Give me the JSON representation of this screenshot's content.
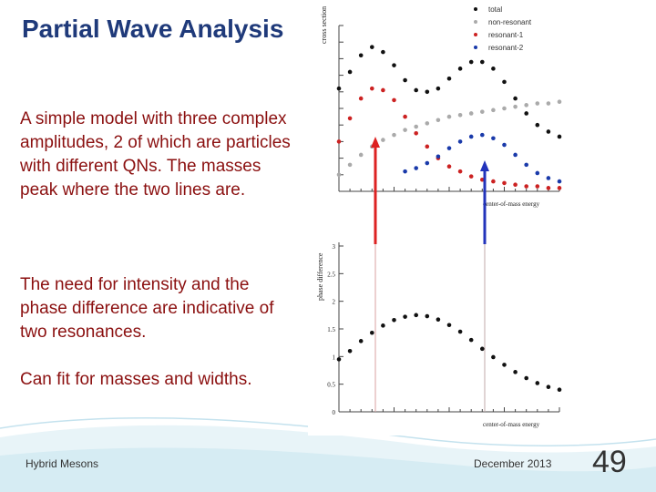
{
  "slide": {
    "title": "Partial Wave Analysis",
    "paragraphs": [
      "A simple model with three complex amplitudes, 2 of which are particles with different QNs. The masses peak where the two lines are.",
      "The need for intensity and the phase difference are indicative of two resonances.",
      "Can fit for masses and widths."
    ],
    "footer_left": "Hybrid Mesons",
    "footer_date": "December 2013",
    "slide_number": "49",
    "colors": {
      "title": "#1f3a7a",
      "body_text": "#8b1010",
      "total": "#111111",
      "non_resonant": "#aaaaaa",
      "resonant_1": "#cc2222",
      "resonant_2": "#1a3aaa",
      "marker_red": "#dd2222",
      "marker_blue": "#2233bb"
    }
  },
  "chart_data": [
    {
      "type": "scatter",
      "ylabel": "cross section",
      "xlabel": "center-of-mass energy",
      "xlim": [
        0,
        1
      ],
      "ylim": [
        0,
        1
      ],
      "legend": "top-right",
      "series": [
        {
          "name": "total",
          "color": "#111111",
          "x": [
            0.0,
            0.05,
            0.1,
            0.15,
            0.2,
            0.25,
            0.3,
            0.35,
            0.4,
            0.45,
            0.5,
            0.55,
            0.6,
            0.65,
            0.7,
            0.75,
            0.8,
            0.85,
            0.9,
            0.95,
            1.0
          ],
          "y": [
            0.62,
            0.72,
            0.82,
            0.87,
            0.84,
            0.76,
            0.67,
            0.61,
            0.6,
            0.62,
            0.68,
            0.74,
            0.78,
            0.78,
            0.74,
            0.66,
            0.56,
            0.47,
            0.4,
            0.36,
            0.33
          ]
        },
        {
          "name": "non-resonant",
          "color": "#aaaaaa",
          "x": [
            0.0,
            0.05,
            0.1,
            0.15,
            0.2,
            0.25,
            0.3,
            0.35,
            0.4,
            0.45,
            0.5,
            0.55,
            0.6,
            0.65,
            0.7,
            0.75,
            0.8,
            0.85,
            0.9,
            0.95,
            1.0
          ],
          "y": [
            0.1,
            0.16,
            0.22,
            0.27,
            0.31,
            0.34,
            0.37,
            0.39,
            0.41,
            0.43,
            0.45,
            0.46,
            0.47,
            0.48,
            0.49,
            0.5,
            0.51,
            0.52,
            0.53,
            0.53,
            0.54
          ]
        },
        {
          "name": "resonant-1",
          "color": "#cc2222",
          "x": [
            0.0,
            0.05,
            0.1,
            0.15,
            0.2,
            0.25,
            0.3,
            0.35,
            0.4,
            0.45,
            0.5,
            0.55,
            0.6,
            0.65,
            0.7,
            0.75,
            0.8,
            0.85,
            0.9,
            0.95,
            1.0
          ],
          "y": [
            0.3,
            0.44,
            0.56,
            0.62,
            0.61,
            0.55,
            0.45,
            0.35,
            0.27,
            0.2,
            0.15,
            0.12,
            0.09,
            0.07,
            0.06,
            0.05,
            0.04,
            0.03,
            0.03,
            0.02,
            0.02
          ]
        },
        {
          "name": "resonant-2",
          "color": "#1a3aaa",
          "x": [
            0.3,
            0.35,
            0.4,
            0.45,
            0.5,
            0.55,
            0.6,
            0.65,
            0.7,
            0.75,
            0.8,
            0.85,
            0.9,
            0.95,
            1.0
          ],
          "y": [
            0.12,
            0.14,
            0.17,
            0.21,
            0.26,
            0.3,
            0.33,
            0.34,
            0.32,
            0.28,
            0.22,
            0.16,
            0.11,
            0.08,
            0.06
          ]
        }
      ]
    },
    {
      "type": "scatter",
      "ylabel": "phase difference",
      "xlabel": "center-of-mass energy",
      "xlim": [
        0,
        1
      ],
      "ylim": [
        0,
        3
      ],
      "yticks": [
        "0",
        "0.5",
        "1",
        "1.5",
        "2",
        "2.5",
        "3"
      ],
      "series": [
        {
          "name": "",
          "color": "#111111",
          "x": [
            0.0,
            0.05,
            0.1,
            0.15,
            0.2,
            0.25,
            0.3,
            0.35,
            0.4,
            0.45,
            0.5,
            0.55,
            0.6,
            0.65,
            0.7,
            0.75,
            0.8,
            0.85,
            0.9,
            0.95,
            1.0
          ],
          "y": [
            0.95,
            1.1,
            1.28,
            1.43,
            1.56,
            1.66,
            1.72,
            1.75,
            1.73,
            1.67,
            1.57,
            1.45,
            1.3,
            1.14,
            0.99,
            0.85,
            0.72,
            0.61,
            0.52,
            0.45,
            0.4
          ]
        }
      ]
    }
  ]
}
